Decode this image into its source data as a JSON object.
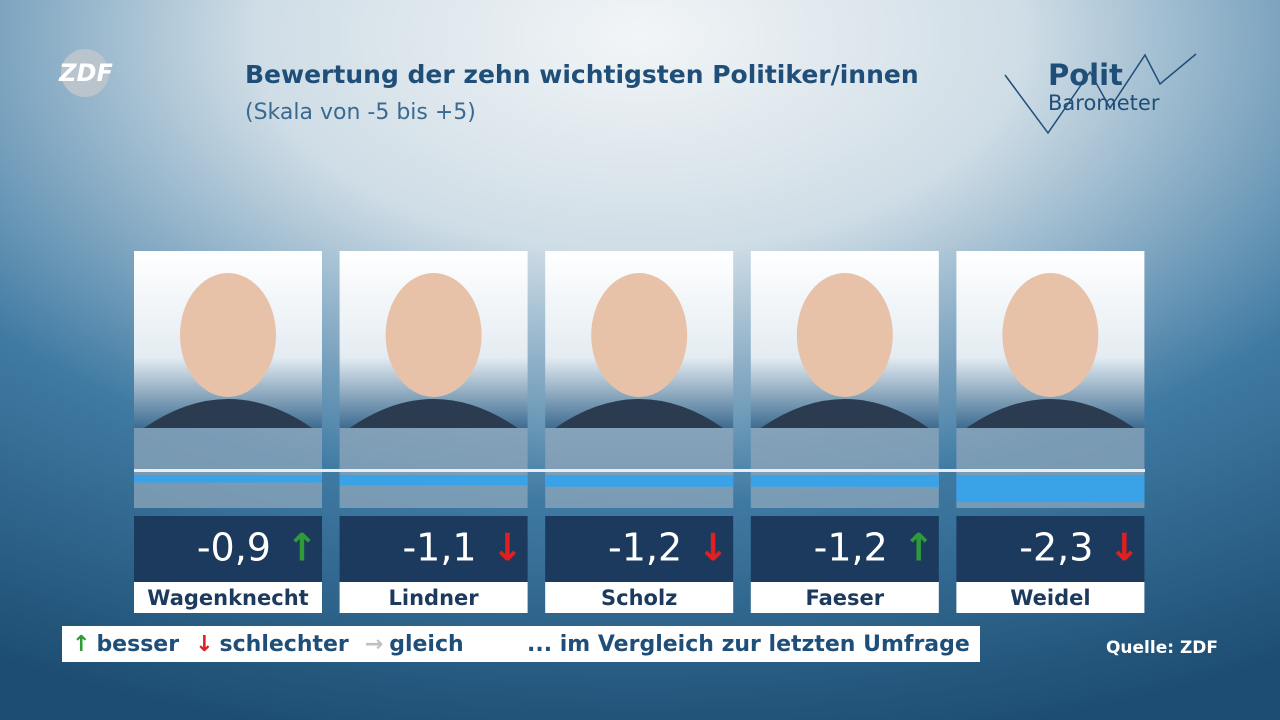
{
  "chart_data": {
    "type": "bar",
    "title": "Bewertung der zehn wichtigsten Politiker/innen",
    "subtitle": "(Skala von -5 bis +5)",
    "logo": "ZDF",
    "brand": [
      "Polit",
      "Barometer"
    ],
    "categories": [
      "Wagenknecht",
      "Lindner",
      "Scholz",
      "Faeser",
      "Weidel"
    ],
    "values": [
      -0.9,
      -1.1,
      -1.2,
      -1.2,
      -2.3
    ],
    "value_labels": [
      "-0,9",
      "-1,1",
      "-1,2",
      "-1,2",
      "-2,3"
    ],
    "trends": [
      "↑",
      "↓",
      "↓",
      "↑",
      "↓"
    ],
    "color": "#3aa3e8",
    "ylim": [
      -3,
      3
    ],
    "legend": [
      {
        "arrow": "↑",
        "label": "besser",
        "color": "#2e9a3a"
      },
      {
        "arrow": "↓",
        "label": "schlechter",
        "color": "#e02020"
      },
      {
        "arrow": "→",
        "label": "gleich",
        "color": "#c0c0c0"
      }
    ],
    "legend_note": "... im Vergleich zur letzten Umfrage",
    "source": "Quelle: ZDF"
  }
}
